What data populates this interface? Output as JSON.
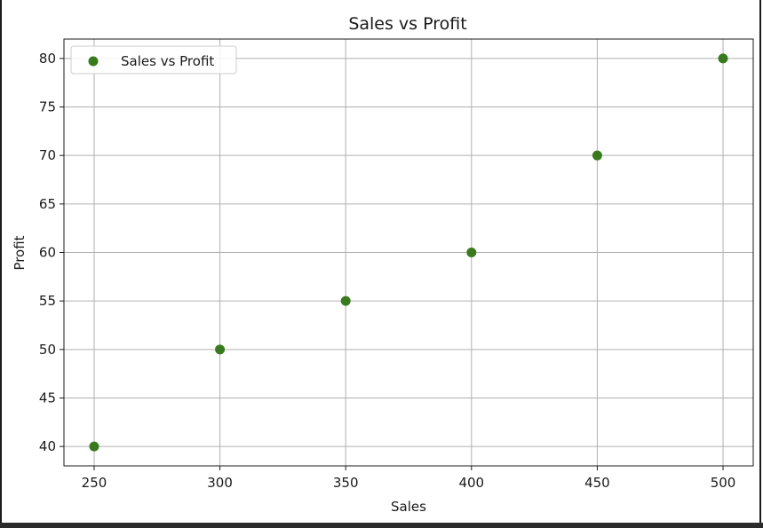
{
  "chart_data": {
    "type": "scatter",
    "title": "Sales vs Profit",
    "xlabel": "Sales",
    "ylabel": "Profit",
    "xlim": [
      238,
      512
    ],
    "ylim": [
      38,
      82
    ],
    "xticks": [
      250,
      300,
      350,
      400,
      450,
      500
    ],
    "yticks": [
      40,
      45,
      50,
      55,
      60,
      65,
      70,
      75,
      80
    ],
    "grid": true,
    "legend_position": "top-left",
    "series": [
      {
        "name": "Sales vs Profit",
        "color": "#3a7a1e",
        "points": [
          {
            "x": 250,
            "y": 40
          },
          {
            "x": 300,
            "y": 50
          },
          {
            "x": 350,
            "y": 55
          },
          {
            "x": 400,
            "y": 60
          },
          {
            "x": 450,
            "y": 70
          },
          {
            "x": 500,
            "y": 80
          }
        ]
      }
    ]
  }
}
